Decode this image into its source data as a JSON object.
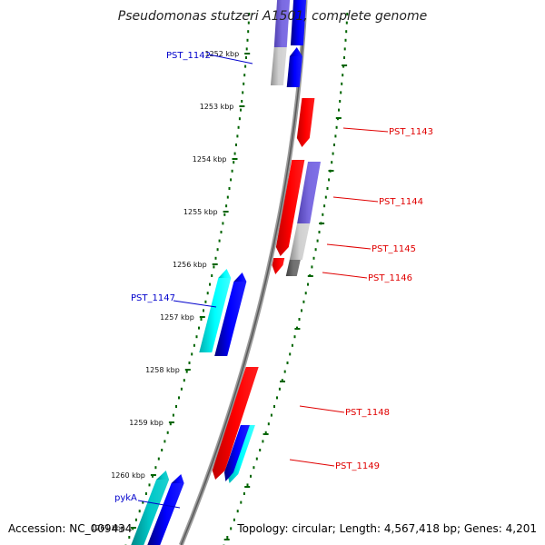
{
  "title": "Pseudomonas stutzeri A1501, complete genome",
  "accession": "Accession: NC_009434",
  "summary": "Topology: circular; Length: 4,567,418 bp; Genes: 4,201",
  "colors": {
    "forward_label": "#0000cc",
    "reverse_label": "#e00000",
    "backbone": "#808080",
    "tick": "#006400",
    "blue": "#0000ff",
    "red": "#ff0000",
    "cyan": "#00e5e5",
    "teal": "#00b3b3",
    "purple": "#7060d0",
    "grey": "#c0c0c0",
    "darkgrey": "#606060"
  },
  "ticks": [
    "1252 kbp",
    "1253 kbp",
    "1254 kbp",
    "1255 kbp",
    "1256 kbp",
    "1257 kbp",
    "1258 kbp",
    "1259 kbp",
    "1260 kbp",
    "1261 kbp"
  ],
  "genes": [
    {
      "label": "PST_1142",
      "strand": "forward"
    },
    {
      "label": "PST_1143",
      "strand": "reverse"
    },
    {
      "label": "PST_1144",
      "strand": "reverse"
    },
    {
      "label": "PST_1145",
      "strand": "reverse"
    },
    {
      "label": "PST_1146",
      "strand": "reverse"
    },
    {
      "label": "PST_1147",
      "strand": "forward"
    },
    {
      "label": "PST_1148",
      "strand": "reverse"
    },
    {
      "label": "PST_1149",
      "strand": "reverse"
    },
    {
      "label": "pykA",
      "strand": "forward"
    }
  ]
}
